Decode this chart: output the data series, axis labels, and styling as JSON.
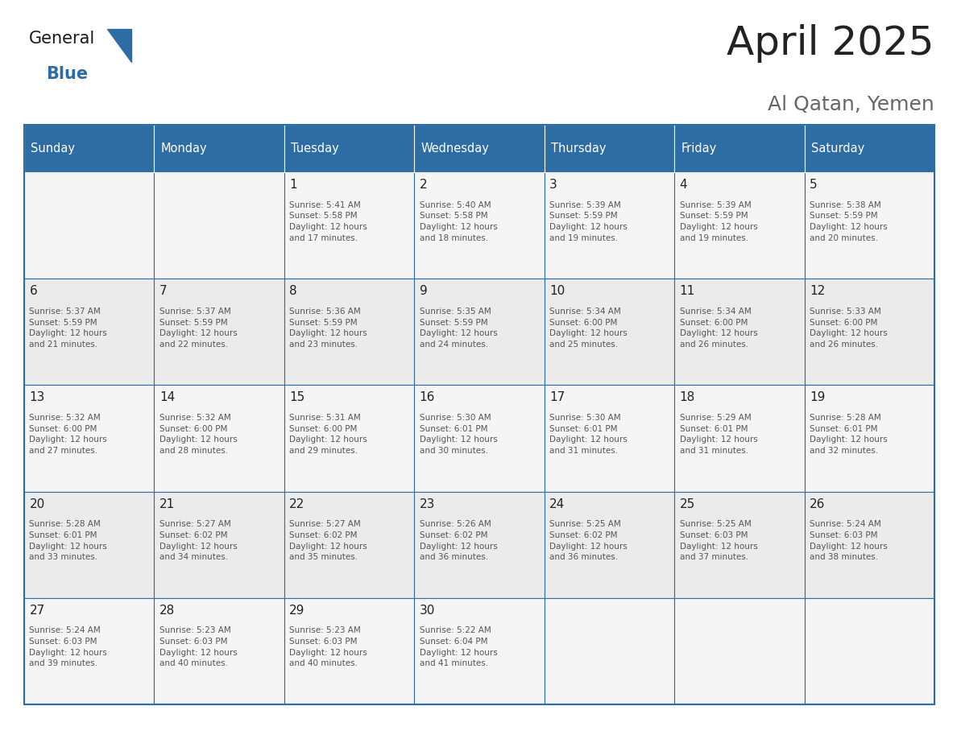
{
  "title": "April 2025",
  "subtitle": "Al Qatan, Yemen",
  "header_bg_color": "#2E6DA4",
  "header_text_color": "#FFFFFF",
  "cell_bg_even": "#F5F5F5",
  "cell_bg_odd": "#EBEBEB",
  "day_number_color": "#222222",
  "cell_text_color": "#555555",
  "grid_line_color": "#2E6DA4",
  "title_color": "#222222",
  "subtitle_color": "#666666",
  "logo_color_general": "#1a1a1a",
  "logo_color_blue": "#2E6DA4",
  "days_of_week": [
    "Sunday",
    "Monday",
    "Tuesday",
    "Wednesday",
    "Thursday",
    "Friday",
    "Saturday"
  ],
  "weeks": [
    [
      {
        "day": 0,
        "text": ""
      },
      {
        "day": 0,
        "text": ""
      },
      {
        "day": 1,
        "text": "Sunrise: 5:41 AM\nSunset: 5:58 PM\nDaylight: 12 hours\nand 17 minutes."
      },
      {
        "day": 2,
        "text": "Sunrise: 5:40 AM\nSunset: 5:58 PM\nDaylight: 12 hours\nand 18 minutes."
      },
      {
        "day": 3,
        "text": "Sunrise: 5:39 AM\nSunset: 5:59 PM\nDaylight: 12 hours\nand 19 minutes."
      },
      {
        "day": 4,
        "text": "Sunrise: 5:39 AM\nSunset: 5:59 PM\nDaylight: 12 hours\nand 19 minutes."
      },
      {
        "day": 5,
        "text": "Sunrise: 5:38 AM\nSunset: 5:59 PM\nDaylight: 12 hours\nand 20 minutes."
      }
    ],
    [
      {
        "day": 6,
        "text": "Sunrise: 5:37 AM\nSunset: 5:59 PM\nDaylight: 12 hours\nand 21 minutes."
      },
      {
        "day": 7,
        "text": "Sunrise: 5:37 AM\nSunset: 5:59 PM\nDaylight: 12 hours\nand 22 minutes."
      },
      {
        "day": 8,
        "text": "Sunrise: 5:36 AM\nSunset: 5:59 PM\nDaylight: 12 hours\nand 23 minutes."
      },
      {
        "day": 9,
        "text": "Sunrise: 5:35 AM\nSunset: 5:59 PM\nDaylight: 12 hours\nand 24 minutes."
      },
      {
        "day": 10,
        "text": "Sunrise: 5:34 AM\nSunset: 6:00 PM\nDaylight: 12 hours\nand 25 minutes."
      },
      {
        "day": 11,
        "text": "Sunrise: 5:34 AM\nSunset: 6:00 PM\nDaylight: 12 hours\nand 26 minutes."
      },
      {
        "day": 12,
        "text": "Sunrise: 5:33 AM\nSunset: 6:00 PM\nDaylight: 12 hours\nand 26 minutes."
      }
    ],
    [
      {
        "day": 13,
        "text": "Sunrise: 5:32 AM\nSunset: 6:00 PM\nDaylight: 12 hours\nand 27 minutes."
      },
      {
        "day": 14,
        "text": "Sunrise: 5:32 AM\nSunset: 6:00 PM\nDaylight: 12 hours\nand 28 minutes."
      },
      {
        "day": 15,
        "text": "Sunrise: 5:31 AM\nSunset: 6:00 PM\nDaylight: 12 hours\nand 29 minutes."
      },
      {
        "day": 16,
        "text": "Sunrise: 5:30 AM\nSunset: 6:01 PM\nDaylight: 12 hours\nand 30 minutes."
      },
      {
        "day": 17,
        "text": "Sunrise: 5:30 AM\nSunset: 6:01 PM\nDaylight: 12 hours\nand 31 minutes."
      },
      {
        "day": 18,
        "text": "Sunrise: 5:29 AM\nSunset: 6:01 PM\nDaylight: 12 hours\nand 31 minutes."
      },
      {
        "day": 19,
        "text": "Sunrise: 5:28 AM\nSunset: 6:01 PM\nDaylight: 12 hours\nand 32 minutes."
      }
    ],
    [
      {
        "day": 20,
        "text": "Sunrise: 5:28 AM\nSunset: 6:01 PM\nDaylight: 12 hours\nand 33 minutes."
      },
      {
        "day": 21,
        "text": "Sunrise: 5:27 AM\nSunset: 6:02 PM\nDaylight: 12 hours\nand 34 minutes."
      },
      {
        "day": 22,
        "text": "Sunrise: 5:27 AM\nSunset: 6:02 PM\nDaylight: 12 hours\nand 35 minutes."
      },
      {
        "day": 23,
        "text": "Sunrise: 5:26 AM\nSunset: 6:02 PM\nDaylight: 12 hours\nand 36 minutes."
      },
      {
        "day": 24,
        "text": "Sunrise: 5:25 AM\nSunset: 6:02 PM\nDaylight: 12 hours\nand 36 minutes."
      },
      {
        "day": 25,
        "text": "Sunrise: 5:25 AM\nSunset: 6:03 PM\nDaylight: 12 hours\nand 37 minutes."
      },
      {
        "day": 26,
        "text": "Sunrise: 5:24 AM\nSunset: 6:03 PM\nDaylight: 12 hours\nand 38 minutes."
      }
    ],
    [
      {
        "day": 27,
        "text": "Sunrise: 5:24 AM\nSunset: 6:03 PM\nDaylight: 12 hours\nand 39 minutes."
      },
      {
        "day": 28,
        "text": "Sunrise: 5:23 AM\nSunset: 6:03 PM\nDaylight: 12 hours\nand 40 minutes."
      },
      {
        "day": 29,
        "text": "Sunrise: 5:23 AM\nSunset: 6:03 PM\nDaylight: 12 hours\nand 40 minutes."
      },
      {
        "day": 30,
        "text": "Sunrise: 5:22 AM\nSunset: 6:04 PM\nDaylight: 12 hours\nand 41 minutes."
      },
      {
        "day": 0,
        "text": ""
      },
      {
        "day": 0,
        "text": ""
      },
      {
        "day": 0,
        "text": ""
      }
    ]
  ],
  "fig_width": 11.88,
  "fig_height": 9.18,
  "dpi": 100,
  "title_fontsize": 36,
  "subtitle_fontsize": 18,
  "header_fontsize": 10.5,
  "day_num_fontsize": 11,
  "cell_text_fontsize": 7.5
}
